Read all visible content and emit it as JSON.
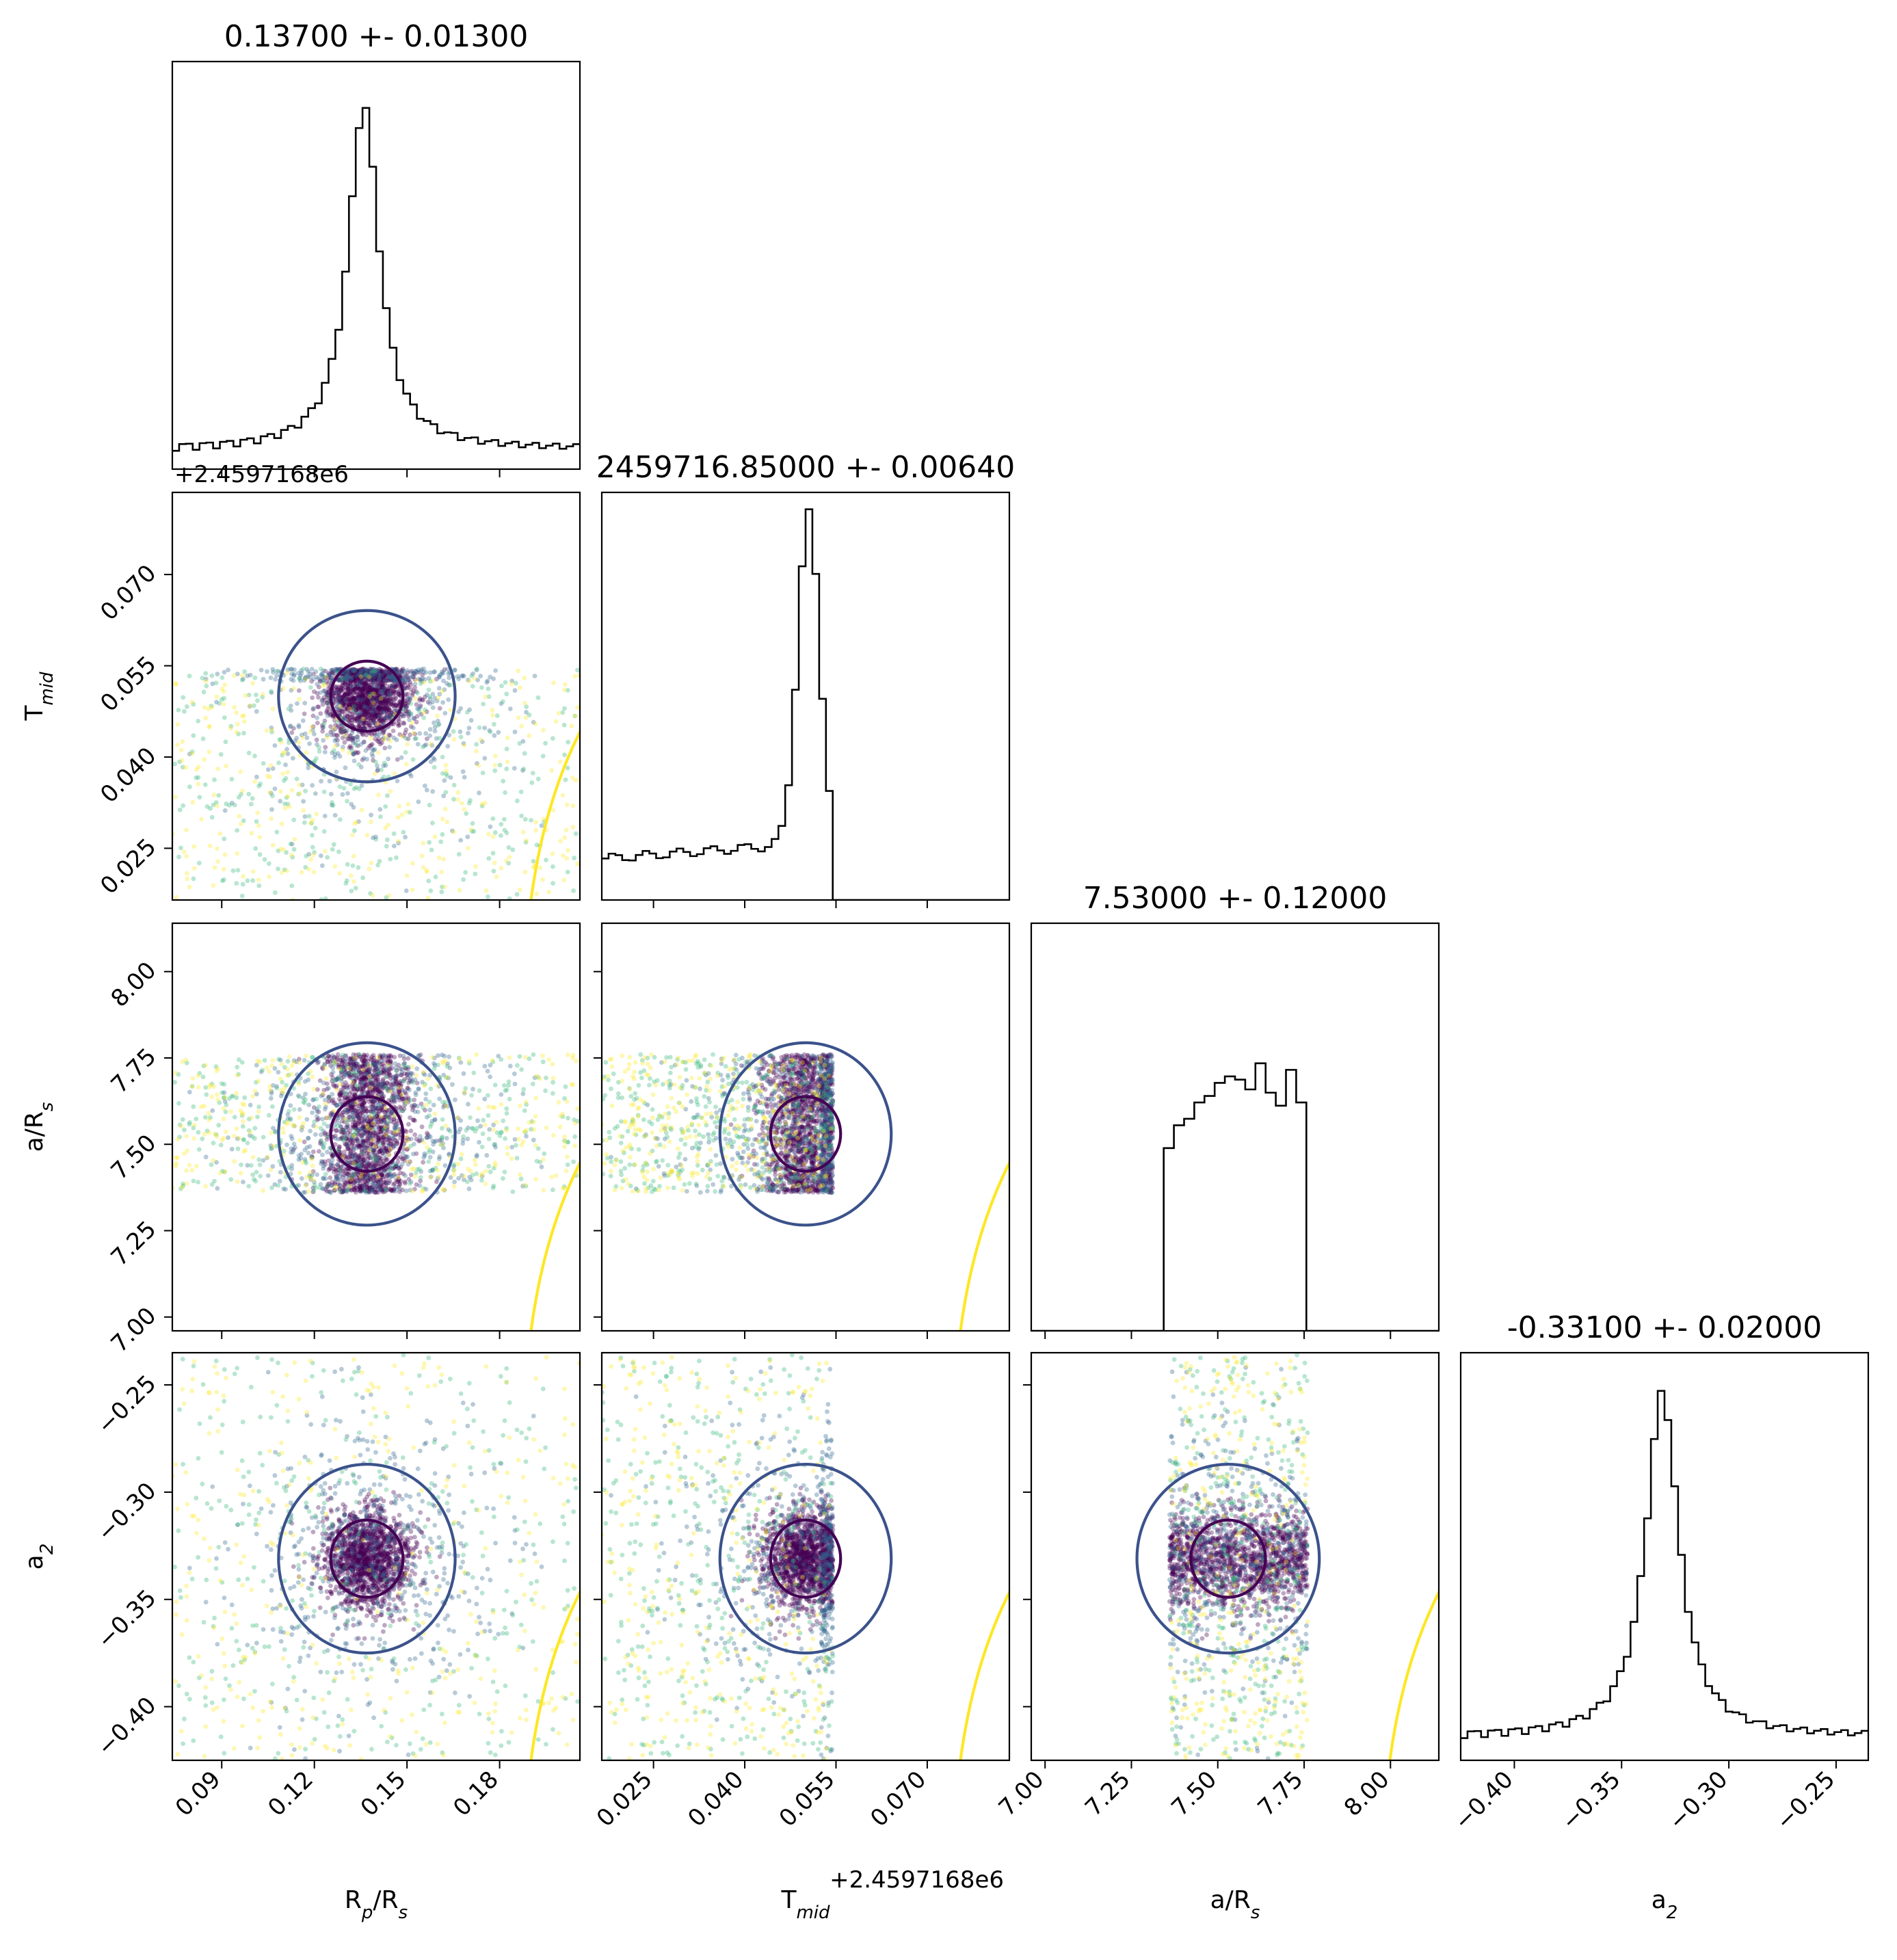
{
  "chart_data": {
    "type": "corner",
    "parameters": [
      {
        "id": "rp",
        "label": "R",
        "label_sub": "p",
        "label_tail": "/R",
        "label_tail_sub": "s",
        "range": [
          0.074,
          0.206
        ],
        "ticks": [
          0.09,
          0.12,
          0.15,
          0.18
        ],
        "tick_labels": [
          "0.09",
          "0.12",
          "0.15",
          "0.18"
        ],
        "title": "0.13700 +- 0.01300",
        "mean": 0.137,
        "std": 0.013,
        "prior_range": [
          0.074,
          0.206
        ]
      },
      {
        "id": "tmid",
        "label": "T",
        "label_sub": "mid",
        "label_tail": "",
        "label_tail_sub": "",
        "range": [
          0.0165,
          0.0835
        ],
        "ticks": [
          0.025,
          0.04,
          0.055,
          0.07
        ],
        "tick_labels": [
          "0.025",
          "0.040",
          "0.055",
          "0.070"
        ],
        "title": "2459716.85000 +- 0.00640",
        "mean": 0.05,
        "std": 0.0064,
        "offset_text": "+2.4597168e6",
        "prior_range": [
          0.0165,
          0.0545
        ]
      },
      {
        "id": "ars",
        "label": "a/R",
        "label_sub": "s",
        "label_tail": "",
        "label_tail_sub": "",
        "range": [
          6.96,
          8.14
        ],
        "ticks": [
          7.0,
          7.25,
          7.5,
          7.75,
          8.0
        ],
        "tick_labels": [
          "7.00",
          "7.25",
          "7.50",
          "7.75",
          "8.00"
        ],
        "title": "7.53000 +- 0.12000",
        "mean": 7.53,
        "std": 0.12,
        "prior_range": [
          7.36,
          7.76
        ]
      },
      {
        "id": "a2",
        "label": "a",
        "label_sub": "2",
        "label_tail": "",
        "label_tail_sub": "",
        "range": [
          -0.425,
          -0.235
        ],
        "ticks": [
          -0.4,
          -0.35,
          -0.3,
          -0.25
        ],
        "tick_labels": [
          "−0.40",
          "−0.35",
          "−0.30",
          "−0.25"
        ],
        "title": "-0.33100 +- 0.02000",
        "mean": -0.331,
        "std": 0.02,
        "prior_range": [
          -0.425,
          -0.235
        ]
      }
    ],
    "histograms": [
      {
        "param": "rp",
        "bins": 60,
        "peak": 0.136,
        "peak_height": 1.0,
        "background": 0.04
      },
      {
        "param": "tmid",
        "bins": 60,
        "peak": 0.0505,
        "peak_height": 1.0,
        "tail_level": 0.11,
        "cutoff": 0.0545
      },
      {
        "param": "ars",
        "bins": 40,
        "support": [
          7.35,
          7.76
        ],
        "levels": [
          0.56,
          0.6,
          0.63,
          0.65,
          0.68,
          0.7,
          0.72,
          0.74,
          0.76,
          0.78,
          0.75,
          0.77,
          0.71,
          0.74,
          0.82,
          0.8,
          0.73,
          0.69,
          0.74,
          0.8,
          0.78,
          0.7
        ]
      },
      {
        "param": "a2",
        "bins": 60,
        "peak": -0.331,
        "peak_height": 1.0,
        "background": 0.05
      }
    ],
    "scatter_colors": [
      "#440154",
      "#31688e",
      "#35b779",
      "#fde725"
    ],
    "contour_colors": {
      "inner": "#440154",
      "middle": "#3b528b",
      "outer": "#fde725"
    },
    "grid": false,
    "legend": "none"
  }
}
